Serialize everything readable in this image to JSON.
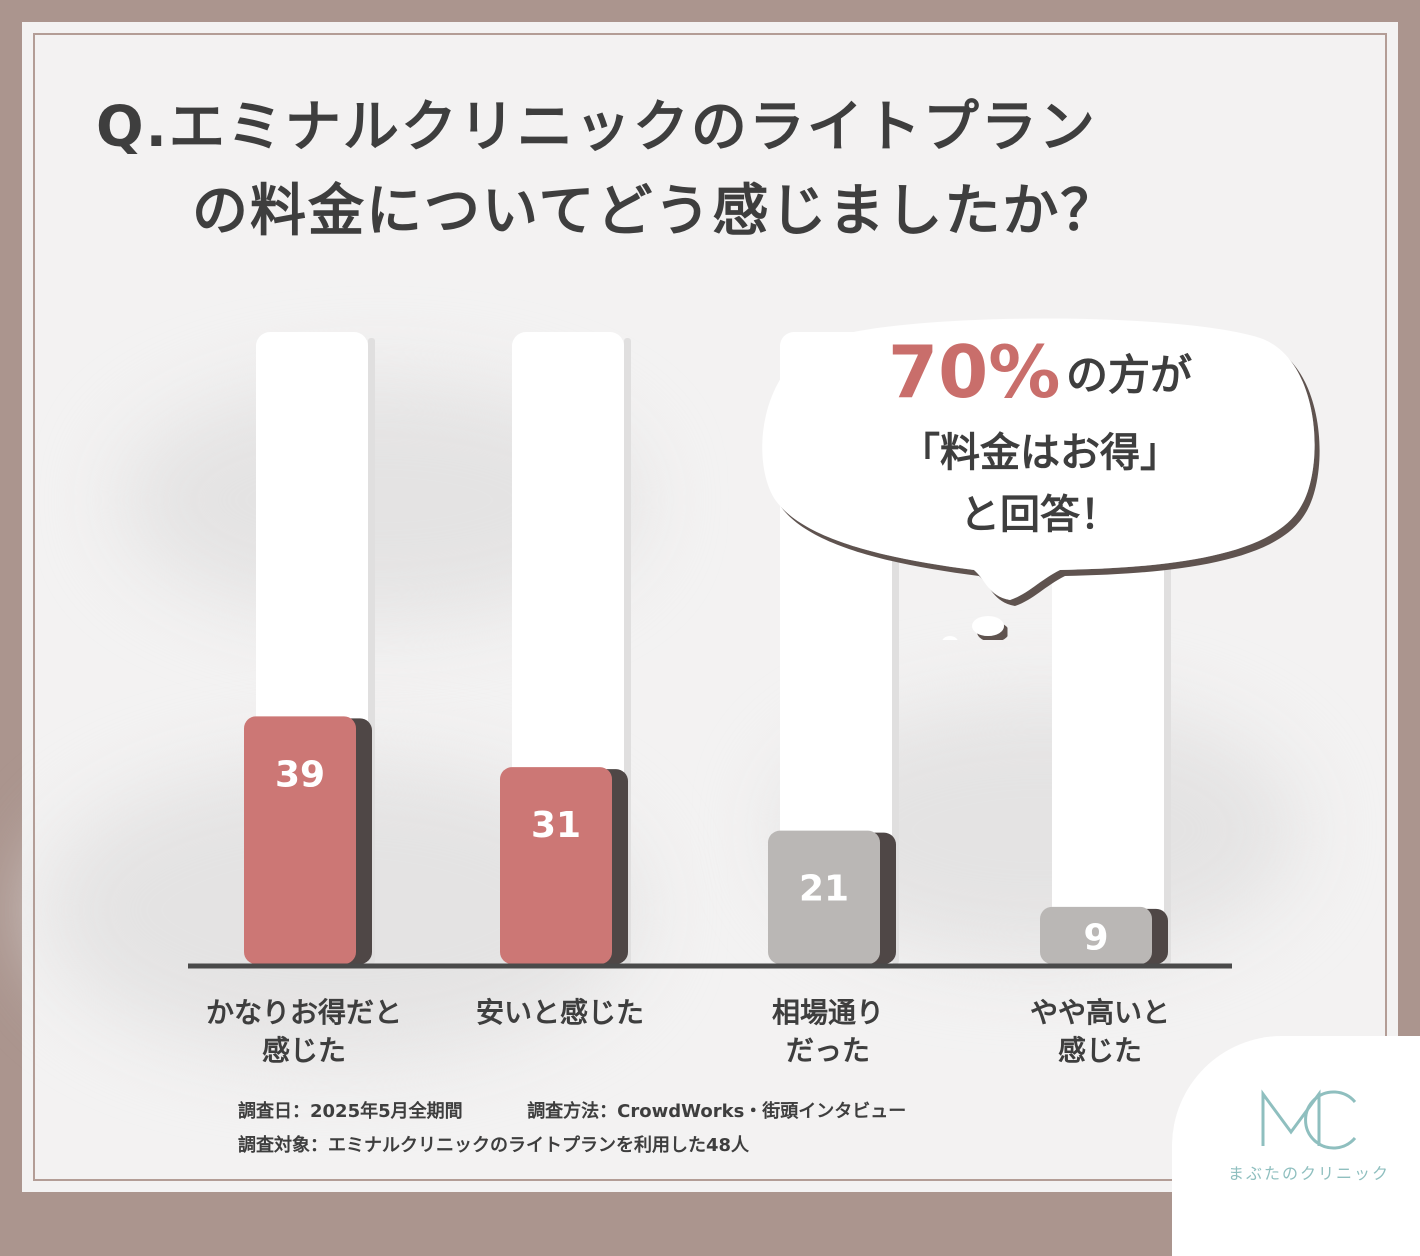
{
  "title": {
    "line1": "Q.エミナルクリニックのライトプラン",
    "line2": "の料金についてどう感じましたか？"
  },
  "chart_data": {
    "type": "bar",
    "categories": [
      [
        "かなりお得だと",
        "感じた"
      ],
      [
        "安いと感じた"
      ],
      [
        "相場通り",
        "だった"
      ],
      [
        "やや高いと",
        "感じた"
      ]
    ],
    "values": [
      39,
      31,
      21,
      9
    ],
    "ylim": [
      0,
      48
    ],
    "colors": [
      "#cc7775",
      "#cc7775",
      "#bab7b5",
      "#bab7b5"
    ],
    "grid": false
  },
  "callout": {
    "highlight": "70%",
    "suffix": "の方が",
    "line2": "「料金はお得」",
    "line3": "と回答！",
    "highlight_color": "#c96e6b"
  },
  "notes": {
    "date": "調査日：2025年5月全期間",
    "method": "調査方法：CrowdWorks・街頭インタビュー",
    "target": "調査対象：エミナルクリニックのライトプランを利用した48人"
  },
  "logo": {
    "mark": "MC",
    "name": "まぶたのクリニック",
    "color": "#8fbfbf"
  }
}
